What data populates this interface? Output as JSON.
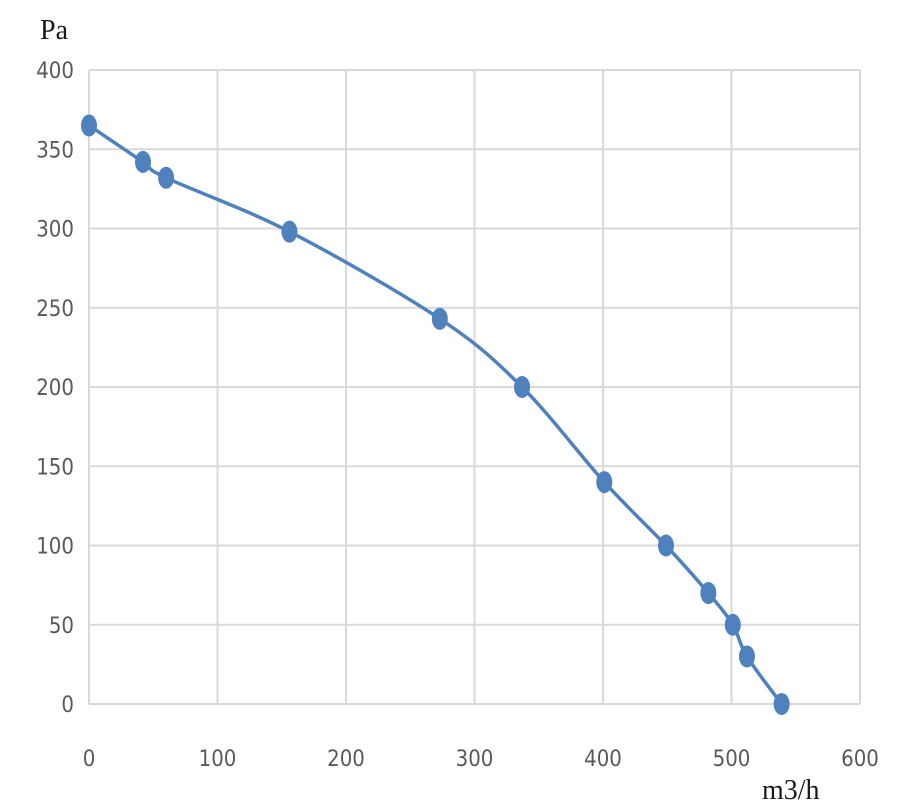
{
  "chart_data": {
    "type": "line",
    "title": "",
    "ylabel": "Pa",
    "xlabel": "m3/h",
    "xlim": [
      0,
      600
    ],
    "ylim": [
      0,
      400
    ],
    "x_ticks": [
      "0",
      "100",
      "200",
      "300",
      "400",
      "500",
      "600"
    ],
    "y_ticks": [
      "0",
      "50",
      "100",
      "150",
      "200",
      "250",
      "300",
      "350",
      "400"
    ],
    "grid": true,
    "legend": "none",
    "series": [
      {
        "color": "#4f81bd",
        "smooth": true,
        "markers": true,
        "x": [
          0,
          42,
          60,
          156,
          273,
          337,
          401,
          449,
          482,
          501,
          512,
          539
        ],
        "y": [
          365,
          342,
          332,
          298,
          243,
          200,
          140,
          100,
          70,
          50,
          30,
          0
        ]
      }
    ]
  }
}
